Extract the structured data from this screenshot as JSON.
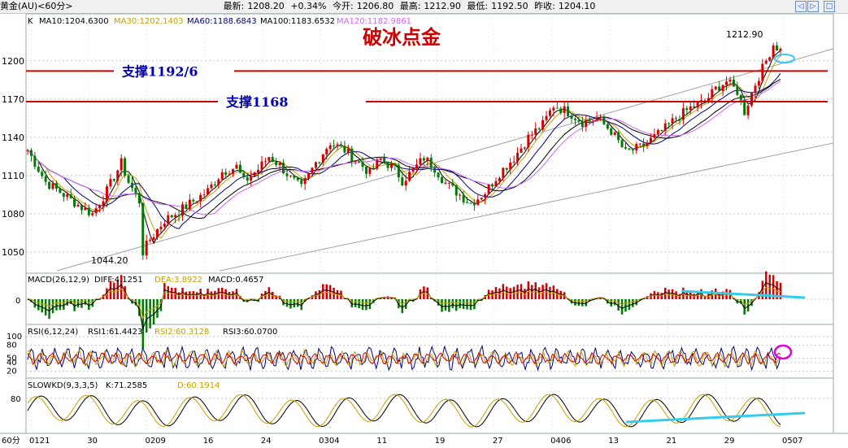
{
  "header": {
    "symbol": "黄金(AU)<60分>",
    "latest_label": "最新:",
    "latest_value": "1208.20",
    "change": "+0.34%",
    "open_label": "今开:",
    "open_value": "1206.80",
    "high_label": "最高:",
    "high_value": "1212.90",
    "low_label": "最低:",
    "low_value": "1192.50",
    "prev_label": "昨收:",
    "prev_value": "1204.10"
  },
  "nav": {
    "prev": "◁",
    "next": "▷",
    "close": "□"
  },
  "colors": {
    "up": "#d40000",
    "down": "#007a00",
    "ma10": "#000000",
    "ma30": "#c8a000",
    "ma60": "#000080",
    "ma100": "#000000",
    "ma120": "#cc66ff",
    "support": "#cc0000",
    "cyan": "#33ccee",
    "magenta": "#dd00dd",
    "annotation": "#cc0000",
    "support_text": "#0000aa"
  },
  "chart_data": [
    {
      "panel": "price",
      "type": "candlestick",
      "indicator_label": "K",
      "legend": [
        {
          "name": "MA10",
          "value": "1204.6300",
          "text": "MA10:1204.6300"
        },
        {
          "name": "MA30",
          "value": "1202.1403",
          "text": "MA30:1202.1403"
        },
        {
          "name": "MA60",
          "value": "1188.6843",
          "text": "MA60:1188.6843"
        },
        {
          "name": "MA100",
          "value": "1183.6532",
          "text": "MA100:1183.6532"
        },
        {
          "name": "MA120",
          "value": "1182.9861",
          "text": "MA120:1182.9861"
        }
      ],
      "y_ticks": [
        1200,
        1170,
        1140,
        1110,
        1080,
        1050
      ],
      "y_tick_labels": [
        "1200",
        "1170",
        "1140",
        "1110",
        "1080",
        "1050"
      ],
      "ylim": [
        1036,
        1226
      ],
      "x_ticks": [
        "0121",
        "30",
        "0209",
        "16",
        "24",
        "0304",
        "11",
        "19",
        "27",
        "0406",
        "13",
        "21",
        "29",
        "0507"
      ],
      "trend_points": [
        [
          0,
          1130
        ],
        [
          5,
          1105
        ],
        [
          10,
          1095
        ],
        [
          15,
          1085
        ],
        [
          18,
          1080
        ],
        [
          22,
          1098
        ],
        [
          26,
          1120
        ],
        [
          28,
          1105
        ],
        [
          31,
          1090
        ],
        [
          32,
          1050
        ],
        [
          34,
          1060
        ],
        [
          38,
          1075
        ],
        [
          42,
          1082
        ],
        [
          46,
          1090
        ],
        [
          50,
          1098
        ],
        [
          54,
          1113
        ],
        [
          58,
          1117
        ],
        [
          60,
          1105
        ],
        [
          64,
          1115
        ],
        [
          67,
          1125
        ],
        [
          70,
          1118
        ],
        [
          73,
          1108
        ],
        [
          76,
          1100
        ],
        [
          80,
          1120
        ],
        [
          84,
          1136
        ],
        [
          88,
          1130
        ],
        [
          92,
          1120
        ],
        [
          95,
          1112
        ],
        [
          98,
          1123
        ],
        [
          102,
          1115
        ],
        [
          104,
          1106
        ],
        [
          107,
          1114
        ],
        [
          110,
          1124
        ],
        [
          113,
          1116
        ],
        [
          116,
          1104
        ],
        [
          120,
          1095
        ],
        [
          123,
          1088
        ],
        [
          127,
          1097
        ],
        [
          131,
          1112
        ],
        [
          135,
          1124
        ],
        [
          139,
          1140
        ],
        [
          143,
          1150
        ],
        [
          146,
          1165
        ],
        [
          150,
          1160
        ],
        [
          154,
          1152
        ],
        [
          158,
          1155
        ],
        [
          162,
          1145
        ],
        [
          166,
          1128
        ],
        [
          170,
          1132
        ],
        [
          174,
          1140
        ],
        [
          177,
          1147
        ],
        [
          180,
          1155
        ],
        [
          184,
          1163
        ],
        [
          188,
          1168
        ],
        [
          191,
          1178
        ],
        [
          194,
          1184
        ],
        [
          197,
          1176
        ],
        [
          199,
          1160
        ],
        [
          202,
          1182
        ],
        [
          205,
          1200
        ],
        [
          207,
          1212.9
        ],
        [
          209,
          1208.2
        ]
      ],
      "support_lines": [
        {
          "label": "支撑1192/6",
          "value": 1192
        },
        {
          "label": "支撑1168",
          "value": 1168
        }
      ],
      "annotations": {
        "title": "破冰点金",
        "high_label": "1212.90",
        "low_label": "1044.20"
      }
    },
    {
      "panel": "macd",
      "type": "bar",
      "indicator_label": "MACD(26,12,9)",
      "legend": [
        {
          "name": "DIFF",
          "value": "4.1251",
          "text": "DIFF:4.1251"
        },
        {
          "name": "DEA",
          "value": "3.8922",
          "text": "DEA:3.8922"
        },
        {
          "name": "MACD",
          "value": "0.4657",
          "text": "MACD:0.4657"
        }
      ],
      "y_tick_labels": [
        "0"
      ]
    },
    {
      "panel": "rsi",
      "type": "line",
      "indicator_label": "RSI(6,12,24)",
      "legend": [
        {
          "name": "RSI1",
          "value": "61.4423",
          "text": "RSI1:61.4423"
        },
        {
          "name": "RSI2",
          "value": "60.3128",
          "text": "RSI2:60.3128"
        },
        {
          "name": "RSI3",
          "value": "60.0700",
          "text": "RSI3:60.0700"
        }
      ],
      "ylim": [
        10,
        100
      ],
      "y_tick_labels": [
        "100",
        "80",
        "50",
        "40",
        "20"
      ],
      "y_ticks": [
        100,
        80,
        50,
        40,
        20
      ]
    },
    {
      "panel": "kd",
      "type": "line",
      "indicator_label": "SLOWKD(9,3,3,5)",
      "legend": [
        {
          "name": "K",
          "value": "71.2585",
          "text": "K:71.2585"
        },
        {
          "name": "D",
          "value": "60.1914",
          "text": "D:60.1914"
        }
      ],
      "ylim": [
        0,
        100
      ],
      "y_tick_labels": [
        "80"
      ],
      "y_ticks": [
        80
      ]
    }
  ],
  "timeframe_label": "60分"
}
